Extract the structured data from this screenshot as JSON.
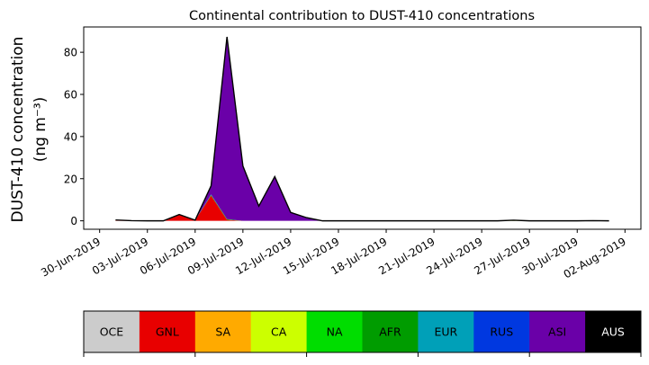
{
  "chart_data": {
    "type": "area",
    "stacked": true,
    "title": "Continental contribution to DUST-410 concentrations",
    "ylabel_line1": "DUST-410 concentration",
    "ylabel_line2": "(ng m⁻³)",
    "xlabel": "",
    "xlim": [
      "2019-06-29",
      "2019-08-03"
    ],
    "ylim": [
      -4,
      92
    ],
    "yticks": [
      0,
      20,
      40,
      60,
      80
    ],
    "xticks": [
      "30-Jun-2019",
      "03-Jul-2019",
      "06-Jul-2019",
      "09-Jul-2019",
      "12-Jul-2019",
      "15-Jul-2019",
      "18-Jul-2019",
      "21-Jul-2019",
      "24-Jul-2019",
      "27-Jul-2019",
      "30-Jul-2019",
      "02-Aug-2019"
    ],
    "x": [
      "2019-07-01",
      "2019-07-02",
      "2019-07-03",
      "2019-07-04",
      "2019-07-05",
      "2019-07-06",
      "2019-07-07",
      "2019-07-08",
      "2019-07-09",
      "2019-07-10",
      "2019-07-11",
      "2019-07-12",
      "2019-07-13",
      "2019-07-14",
      "2019-07-15",
      "2019-07-16",
      "2019-07-17",
      "2019-07-18",
      "2019-07-19",
      "2019-07-20",
      "2019-07-21",
      "2019-07-22",
      "2019-07-23",
      "2019-07-24",
      "2019-07-25",
      "2019-07-26",
      "2019-07-27",
      "2019-07-28",
      "2019-07-29",
      "2019-07-30",
      "2019-07-31",
      "2019-08-01"
    ],
    "total_line_color": "#000000",
    "series": [
      {
        "name": "OCE",
        "color": "#cccccc",
        "values": [
          0,
          0,
          0,
          0,
          0,
          0,
          0,
          0,
          0,
          0,
          0,
          0,
          0,
          0,
          0,
          0,
          0,
          0,
          0,
          0,
          0,
          0,
          0,
          0,
          0,
          0,
          0,
          0,
          0,
          0,
          0,
          0
        ]
      },
      {
        "name": "GNL",
        "color": "#e80000",
        "values": [
          0.2,
          0.1,
          0,
          0,
          3,
          0.3,
          12,
          0.5,
          0,
          0,
          0,
          0,
          0,
          0,
          0,
          0,
          0,
          0,
          0,
          0,
          0,
          0,
          0,
          0,
          0,
          0,
          0,
          0,
          0,
          0,
          0,
          0
        ]
      },
      {
        "name": "SA",
        "color": "#ffaa00",
        "values": [
          0.2,
          0,
          0,
          0,
          0,
          0,
          0,
          0,
          0,
          0,
          0,
          0,
          0,
          0,
          0,
          0,
          0,
          0,
          0,
          0,
          0,
          0,
          0,
          0,
          0,
          0,
          0,
          0,
          0,
          0,
          0.1,
          0
        ]
      },
      {
        "name": "CA",
        "color": "#ccff00",
        "values": [
          0,
          0,
          0,
          0,
          0,
          0,
          0,
          0,
          0,
          0,
          0,
          0,
          0,
          0,
          0,
          0,
          0,
          0,
          0,
          0,
          0,
          0,
          0,
          0,
          0,
          0.3,
          0,
          0,
          0,
          0,
          0,
          0
        ]
      },
      {
        "name": "NA",
        "color": "#00dd00",
        "values": [
          0,
          0,
          0,
          0,
          0,
          0,
          0.3,
          0.3,
          0,
          0,
          0,
          0,
          0,
          0,
          0,
          0,
          0,
          0,
          0,
          0,
          0,
          0,
          0,
          0,
          0,
          0,
          0,
          0,
          0,
          0,
          0,
          0
        ]
      },
      {
        "name": "AFR",
        "color": "#009c00",
        "values": [
          0,
          0,
          0,
          0,
          0,
          0,
          0,
          0,
          0,
          0,
          0,
          0,
          0,
          0,
          0,
          0,
          0,
          0,
          0,
          0,
          0,
          0,
          0,
          0,
          0,
          0,
          0,
          0,
          0,
          0,
          0,
          0
        ]
      },
      {
        "name": "EUR",
        "color": "#00a0b8",
        "values": [
          0,
          0,
          0,
          0,
          0,
          0,
          0,
          0,
          0,
          0,
          0,
          0,
          0,
          0,
          0,
          0,
          0,
          0,
          0,
          0,
          0,
          0,
          0,
          0,
          0,
          0,
          0,
          0,
          0,
          0,
          0,
          0
        ]
      },
      {
        "name": "RUS",
        "color": "#0038e0",
        "values": [
          0,
          0,
          0,
          0,
          0,
          0,
          0.3,
          0,
          0,
          0,
          0,
          0,
          0,
          0,
          0,
          0,
          0,
          0,
          0,
          0,
          0,
          0,
          0,
          0,
          0,
          0,
          0,
          0,
          0,
          0,
          0,
          0
        ]
      },
      {
        "name": "ASI",
        "color": "#6a00a8",
        "values": [
          0,
          0,
          0,
          0,
          0,
          0,
          4,
          86.5,
          26,
          7,
          21,
          4,
          1.5,
          0,
          0,
          0,
          0,
          0,
          0,
          0,
          0,
          0,
          0,
          0,
          0,
          0,
          0,
          0,
          0,
          0,
          0,
          0
        ]
      },
      {
        "name": "AUS",
        "color": "#000000",
        "values": [
          0,
          0,
          0,
          0,
          0,
          0,
          0,
          0,
          0,
          0,
          0,
          0,
          0,
          0,
          0,
          0,
          0,
          0,
          0,
          0,
          0,
          0,
          0,
          0,
          0,
          0,
          0,
          0,
          0,
          0,
          0,
          0
        ]
      }
    ]
  }
}
